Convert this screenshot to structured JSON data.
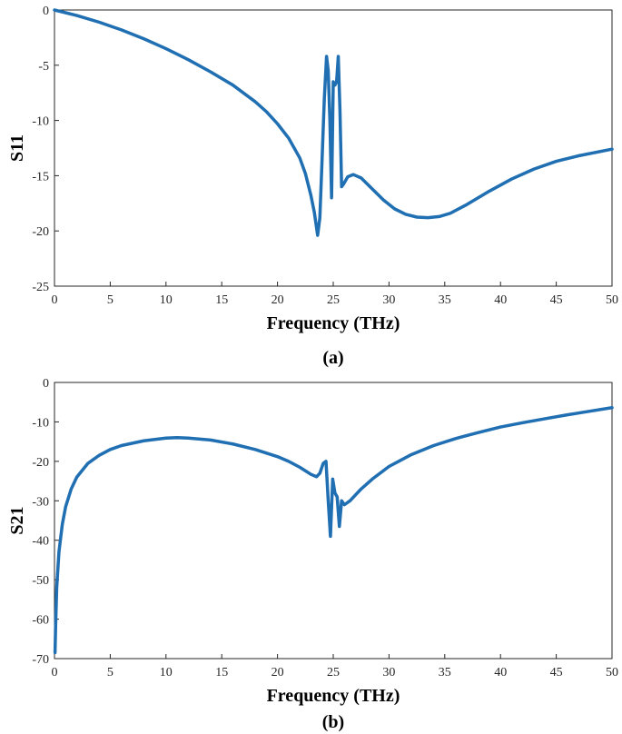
{
  "chart_data": [
    {
      "type": "line",
      "caption": "(a)",
      "xlabel": "Frequency (THz)",
      "ylabel": "S11",
      "xlim": [
        0,
        50
      ],
      "ylim": [
        -25,
        0
      ],
      "xticks": [
        0,
        5,
        10,
        15,
        20,
        25,
        30,
        35,
        40,
        45,
        50
      ],
      "yticks": [
        0,
        -5,
        -10,
        -15,
        -20,
        -25
      ],
      "grid": false,
      "line_color": "#1f6fb2",
      "series": [
        {
          "x": [
            0,
            2,
            4,
            6,
            8,
            10,
            12,
            14,
            16,
            18,
            19,
            20,
            21,
            22,
            22.5,
            23,
            23.3,
            23.6,
            23.8,
            24.0,
            24.2,
            24.4,
            24.55,
            24.7,
            24.85,
            25.0,
            25.15,
            25.3,
            25.45,
            25.6,
            25.75,
            25.9,
            26.3,
            26.8,
            27.5,
            28.5,
            29.5,
            30.5,
            31.5,
            32.5,
            33.5,
            34.5,
            35.5,
            37,
            39,
            41,
            43,
            45,
            47,
            50
          ],
          "y": [
            0,
            -0.5,
            -1.1,
            -1.8,
            -2.6,
            -3.5,
            -4.5,
            -5.6,
            -6.8,
            -8.3,
            -9.2,
            -10.3,
            -11.6,
            -13.4,
            -14.8,
            -16.8,
            -18.3,
            -20.4,
            -18.8,
            -13.5,
            -8.0,
            -4.2,
            -5.5,
            -10.0,
            -17.0,
            -6.5,
            -6.8,
            -6.5,
            -4.2,
            -9.0,
            -16.0,
            -15.8,
            -15.1,
            -14.9,
            -15.2,
            -16.2,
            -17.2,
            -18.0,
            -18.5,
            -18.75,
            -18.8,
            -18.7,
            -18.4,
            -17.6,
            -16.4,
            -15.3,
            -14.4,
            -13.7,
            -13.2,
            -12.6
          ]
        }
      ]
    },
    {
      "type": "line",
      "caption": "(b)",
      "xlabel": "Frequency (THz)",
      "ylabel": "S21",
      "xlim": [
        0,
        50
      ],
      "ylim": [
        -70,
        0
      ],
      "xticks": [
        0,
        5,
        10,
        15,
        20,
        25,
        30,
        35,
        40,
        45,
        50
      ],
      "yticks": [
        0,
        -10,
        -20,
        -30,
        -40,
        -50,
        -60,
        -70
      ],
      "grid": false,
      "line_color": "#1f6fb2",
      "series": [
        {
          "x": [
            0.05,
            0.1,
            0.2,
            0.4,
            0.7,
            1,
            1.5,
            2,
            3,
            4,
            5,
            6,
            8,
            10,
            11,
            12,
            14,
            16,
            18,
            20,
            21,
            22,
            23,
            23.5,
            23.8,
            24.1,
            24.35,
            24.55,
            24.75,
            24.95,
            25.15,
            25.35,
            25.55,
            25.75,
            26.0,
            26.5,
            27.5,
            28.5,
            30,
            32,
            34,
            36,
            38,
            40,
            42,
            44,
            46,
            48,
            50
          ],
          "y": [
            -68.5,
            -62,
            -52,
            -43,
            -36,
            -31.5,
            -27,
            -24,
            -20.5,
            -18.5,
            -17,
            -16,
            -14.8,
            -14.1,
            -14,
            -14.1,
            -14.6,
            -15.6,
            -17,
            -18.8,
            -20,
            -21.5,
            -23.3,
            -23.9,
            -23,
            -20.5,
            -20,
            -30,
            -39,
            -24.5,
            -28,
            -29,
            -36.5,
            -30,
            -31,
            -30,
            -27,
            -24.5,
            -21.3,
            -18.3,
            -16,
            -14.2,
            -12.7,
            -11.3,
            -10.2,
            -9.2,
            -8.2,
            -7.3,
            -6.4
          ]
        }
      ]
    }
  ]
}
